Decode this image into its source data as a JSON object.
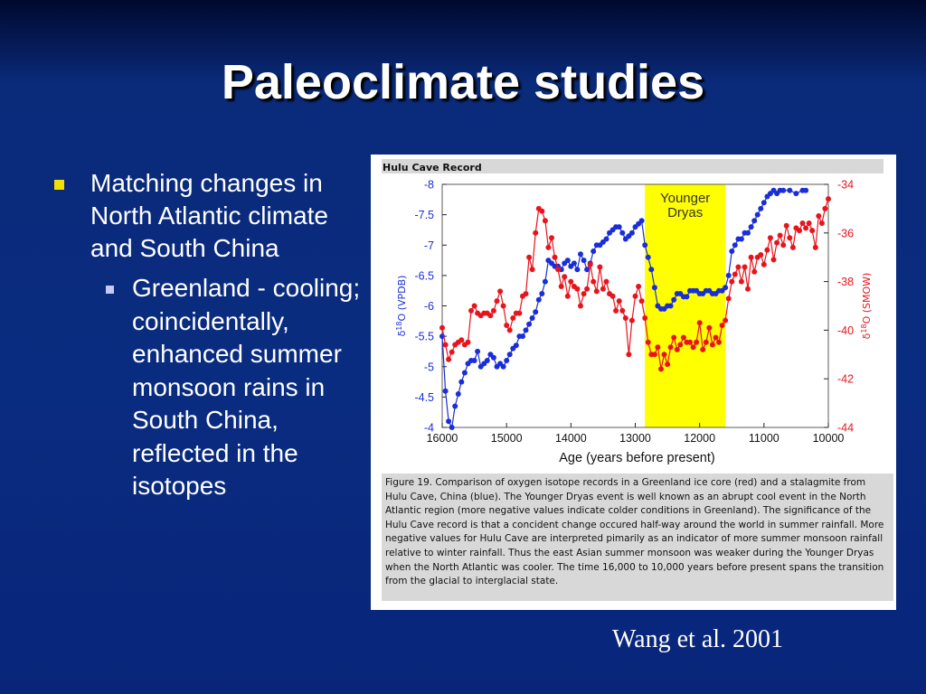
{
  "slide": {
    "title": "Paleoclimate studies",
    "bullet_1": "Matching changes in North Atlantic climate and South China",
    "bullet_2": "Greenland - cooling; coincidentally, enhanced summer monsoon rains in South China, reflected in the isotopes",
    "credit": "Wang et al. 2001",
    "colors": {
      "background": "#0a2c80",
      "bullet": "#f2e000",
      "sub_bullet": "#c9c6f8",
      "text": "#ffffff"
    }
  },
  "figure": {
    "caption": "Figure 19. Comparison of oxygen isotope records in a Greenland ice core (red) and a stalagmite from Hulu Cave, China (blue). The Younger Dryas event is well known as an abrupt cool event in the North Atlantic region (more negative values indicate colder conditions in Greenland). The significance of the Hulu Cave record is that a concident change occured half-way around the world in summer rainfall. More negative values for Hulu Cave are interpreted pimarily as an indicator of more summer monsoon rainfall relative to winter rainfall. Thus the east Asian summer monsoon was weaker during the Younger Dryas when the North Atlantic was cooler. The time 16,000 to 10,000 years before present spans the transition from the glacial to interglacial state."
  },
  "chart_data": {
    "type": "line",
    "title": "Hulu Cave Record",
    "xlabel": "Age (years before present)",
    "xlim": [
      16000,
      10000
    ],
    "x_ticks": [
      "16000",
      "15000",
      "14000",
      "13000",
      "12000",
      "11000",
      "10000"
    ],
    "y_left": {
      "label_main": "δ",
      "label_sup": "18",
      "label_rest": "O (VPDB)",
      "lim": [
        -4,
        -8
      ],
      "ticks": [
        "-8",
        "-7.5",
        "-7",
        "-6.5",
        "-6",
        "-5.5",
        "-5",
        "-4.5",
        "-4"
      ],
      "color": "#1a2ed8"
    },
    "y_right": {
      "label_main": "δ",
      "label_sup": "18",
      "label_rest": "O (SMOW)",
      "lim": [
        -44,
        -34
      ],
      "ticks": [
        "-34",
        "-36",
        "-38",
        "-40",
        "-42",
        "-44"
      ],
      "color": "#e8141c"
    },
    "annotation": {
      "lines": [
        "Younger",
        "Dryas"
      ],
      "x_range": [
        12850,
        11600
      ],
      "color": "#ffff00"
    },
    "series": [
      {
        "axis": "left",
        "color": "#1a2ed8",
        "points": [
          [
            16000,
            -5.5
          ],
          [
            15950,
            -4.6
          ],
          [
            15900,
            -4.1
          ],
          [
            15850,
            -4.0
          ],
          [
            15800,
            -4.35
          ],
          [
            15750,
            -4.55
          ],
          [
            15700,
            -4.75
          ],
          [
            15650,
            -4.9
          ],
          [
            15600,
            -5.05
          ],
          [
            15550,
            -5.1
          ],
          [
            15500,
            -5.1
          ],
          [
            15450,
            -5.25
          ],
          [
            15400,
            -5.0
          ],
          [
            15350,
            -5.05
          ],
          [
            15300,
            -5.1
          ],
          [
            15250,
            -5.2
          ],
          [
            15200,
            -5.15
          ],
          [
            15150,
            -5.0
          ],
          [
            15100,
            -5.05
          ],
          [
            15050,
            -5.0
          ],
          [
            15000,
            -5.1
          ],
          [
            14950,
            -5.2
          ],
          [
            14900,
            -5.3
          ],
          [
            14850,
            -5.35
          ],
          [
            14800,
            -5.5
          ],
          [
            14750,
            -5.5
          ],
          [
            14700,
            -5.6
          ],
          [
            14650,
            -5.7
          ],
          [
            14600,
            -5.8
          ],
          [
            14550,
            -5.9
          ],
          [
            14500,
            -6.1
          ],
          [
            14450,
            -6.2
          ],
          [
            14400,
            -6.4
          ],
          [
            14350,
            -6.75
          ],
          [
            14300,
            -6.7
          ],
          [
            14250,
            -6.65
          ],
          [
            14200,
            -6.65
          ],
          [
            14150,
            -6.6
          ],
          [
            14100,
            -6.7
          ],
          [
            14050,
            -6.75
          ],
          [
            14000,
            -6.65
          ],
          [
            13950,
            -6.7
          ],
          [
            13900,
            -6.6
          ],
          [
            13850,
            -6.85
          ],
          [
            13800,
            -6.75
          ],
          [
            13750,
            -6.6
          ],
          [
            13700,
            -6.7
          ],
          [
            13650,
            -6.9
          ],
          [
            13600,
            -7.0
          ],
          [
            13550,
            -7.0
          ],
          [
            13500,
            -7.05
          ],
          [
            13450,
            -7.1
          ],
          [
            13400,
            -7.2
          ],
          [
            13350,
            -7.25
          ],
          [
            13300,
            -7.3
          ],
          [
            13250,
            -7.3
          ],
          [
            13200,
            -7.2
          ],
          [
            13150,
            -7.1
          ],
          [
            13100,
            -7.15
          ],
          [
            13050,
            -7.2
          ],
          [
            13000,
            -7.3
          ],
          [
            12950,
            -7.35
          ],
          [
            12900,
            -7.4
          ],
          [
            12850,
            -7.0
          ],
          [
            12800,
            -6.8
          ],
          [
            12750,
            -6.6
          ],
          [
            12700,
            -6.3
          ],
          [
            12650,
            -6.0
          ],
          [
            12600,
            -5.95
          ],
          [
            12550,
            -5.95
          ],
          [
            12500,
            -6.0
          ],
          [
            12450,
            -6.0
          ],
          [
            12400,
            -6.1
          ],
          [
            12350,
            -6.2
          ],
          [
            12300,
            -6.2
          ],
          [
            12250,
            -6.15
          ],
          [
            12200,
            -6.15
          ],
          [
            12150,
            -6.25
          ],
          [
            12100,
            -6.25
          ],
          [
            12050,
            -6.25
          ],
          [
            12000,
            -6.2
          ],
          [
            11950,
            -6.2
          ],
          [
            11900,
            -6.25
          ],
          [
            11850,
            -6.25
          ],
          [
            11800,
            -6.2
          ],
          [
            11750,
            -6.2
          ],
          [
            11700,
            -6.25
          ],
          [
            11650,
            -6.25
          ],
          [
            11600,
            -6.3
          ],
          [
            11550,
            -6.5
          ],
          [
            11500,
            -6.9
          ],
          [
            11450,
            -7.0
          ],
          [
            11400,
            -7.1
          ],
          [
            11350,
            -7.1
          ],
          [
            11300,
            -7.2
          ],
          [
            11250,
            -7.2
          ],
          [
            11200,
            -7.3
          ],
          [
            11150,
            -7.4
          ],
          [
            11100,
            -7.5
          ],
          [
            11050,
            -7.6
          ],
          [
            11000,
            -7.7
          ],
          [
            10950,
            -7.8
          ],
          [
            10900,
            -7.85
          ],
          [
            10850,
            -7.9
          ],
          [
            10800,
            -7.85
          ],
          [
            10750,
            -7.9
          ],
          [
            10700,
            -7.9
          ],
          [
            10600,
            -7.9
          ],
          [
            10500,
            -7.85
          ],
          [
            10400,
            -7.9
          ],
          [
            10350,
            -7.9
          ]
        ]
      },
      {
        "axis": "right",
        "color": "#e8141c",
        "points": [
          [
            16000,
            -39.9
          ],
          [
            15950,
            -40.6
          ],
          [
            15900,
            -41.2
          ],
          [
            15850,
            -40.9
          ],
          [
            15800,
            -40.6
          ],
          [
            15750,
            -40.5
          ],
          [
            15700,
            -40.4
          ],
          [
            15650,
            -40.6
          ],
          [
            15600,
            -40.5
          ],
          [
            15550,
            -39.2
          ],
          [
            15500,
            -39.0
          ],
          [
            15450,
            -39.3
          ],
          [
            15400,
            -39.4
          ],
          [
            15350,
            -39.3
          ],
          [
            15300,
            -39.3
          ],
          [
            15250,
            -39.4
          ],
          [
            15200,
            -39.2
          ],
          [
            15150,
            -38.8
          ],
          [
            15100,
            -38.4
          ],
          [
            15050,
            -39.0
          ],
          [
            15000,
            -39.8
          ],
          [
            14950,
            -40.0
          ],
          [
            14900,
            -39.5
          ],
          [
            14850,
            -39.3
          ],
          [
            14800,
            -39.3
          ],
          [
            14750,
            -38.6
          ],
          [
            14700,
            -38.5
          ],
          [
            14650,
            -37.0
          ],
          [
            14600,
            -37.5
          ],
          [
            14550,
            -36.0
          ],
          [
            14500,
            -35.0
          ],
          [
            14450,
            -35.1
          ],
          [
            14400,
            -35.5
          ],
          [
            14350,
            -36.6
          ],
          [
            14300,
            -36.2
          ],
          [
            14250,
            -37.0
          ],
          [
            14200,
            -37.5
          ],
          [
            14150,
            -38.2
          ],
          [
            14100,
            -37.8
          ],
          [
            14050,
            -38.6
          ],
          [
            14000,
            -38.0
          ],
          [
            13950,
            -38.2
          ],
          [
            13900,
            -38.3
          ],
          [
            13850,
            -39.0
          ],
          [
            13800,
            -38.5
          ],
          [
            13750,
            -38.3
          ],
          [
            13700,
            -37.3
          ],
          [
            13650,
            -38.0
          ],
          [
            13600,
            -38.4
          ],
          [
            13550,
            -37.4
          ],
          [
            13500,
            -38.3
          ],
          [
            13450,
            -38.0
          ],
          [
            13400,
            -38.5
          ],
          [
            13350,
            -38.6
          ],
          [
            13300,
            -39.2
          ],
          [
            13250,
            -38.8
          ],
          [
            13200,
            -39.2
          ],
          [
            13150,
            -39.5
          ],
          [
            13100,
            -41.0
          ],
          [
            13050,
            -39.6
          ],
          [
            13000,
            -38.6
          ],
          [
            12950,
            -38.2
          ],
          [
            12900,
            -38.8
          ],
          [
            12850,
            -39.5
          ],
          [
            12800,
            -40.5
          ],
          [
            12750,
            -41.0
          ],
          [
            12700,
            -41.0
          ],
          [
            12650,
            -40.7
          ],
          [
            12600,
            -41.6
          ],
          [
            12550,
            -41.0
          ],
          [
            12500,
            -41.4
          ],
          [
            12450,
            -40.7
          ],
          [
            12400,
            -40.3
          ],
          [
            12350,
            -40.8
          ],
          [
            12300,
            -40.6
          ],
          [
            12250,
            -40.3
          ],
          [
            12200,
            -40.5
          ],
          [
            12150,
            -40.5
          ],
          [
            12100,
            -40.7
          ],
          [
            12050,
            -40.5
          ],
          [
            12000,
            -39.7
          ],
          [
            11950,
            -40.8
          ],
          [
            11900,
            -40.5
          ],
          [
            11850,
            -39.9
          ],
          [
            11800,
            -40.6
          ],
          [
            11750,
            -40.3
          ],
          [
            11700,
            -40.5
          ],
          [
            11650,
            -39.8
          ],
          [
            11600,
            -39.6
          ],
          [
            11550,
            -38.7
          ],
          [
            11500,
            -38.0
          ],
          [
            11450,
            -37.7
          ],
          [
            11400,
            -37.4
          ],
          [
            11350,
            -38.0
          ],
          [
            11300,
            -37.4
          ],
          [
            11250,
            -38.3
          ],
          [
            11200,
            -37.0
          ],
          [
            11150,
            -37.6
          ],
          [
            11100,
            -37.0
          ],
          [
            11050,
            -36.9
          ],
          [
            11000,
            -37.3
          ],
          [
            10950,
            -36.7
          ],
          [
            10900,
            -36.2
          ],
          [
            10850,
            -37.1
          ],
          [
            10800,
            -36.4
          ],
          [
            10750,
            -36.1
          ],
          [
            10700,
            -36.5
          ],
          [
            10650,
            -35.7
          ],
          [
            10600,
            -36.2
          ],
          [
            10550,
            -36.6
          ],
          [
            10500,
            -35.8
          ],
          [
            10450,
            -35.9
          ],
          [
            10400,
            -35.6
          ],
          [
            10350,
            -35.8
          ],
          [
            10300,
            -35.6
          ],
          [
            10250,
            -35.9
          ],
          [
            10200,
            -36.6
          ],
          [
            10150,
            -35.3
          ],
          [
            10100,
            -35.6
          ],
          [
            10050,
            -35.0
          ],
          [
            10000,
            -34.6
          ]
        ]
      }
    ]
  }
}
